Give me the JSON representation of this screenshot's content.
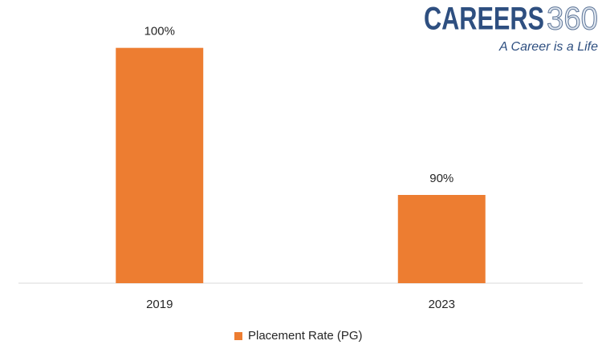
{
  "chart_data": {
    "type": "bar",
    "categories": [
      "2019",
      "2023"
    ],
    "series": [
      {
        "name": "Placement Rate (PG)",
        "color": "#ed7d31",
        "values": [
          100,
          90
        ],
        "value_labels": [
          "100%",
          "90%"
        ]
      }
    ],
    "ylim": [
      84,
      102
    ],
    "grid": false,
    "legend": "bottom"
  },
  "logo": {
    "text": "CAREERS",
    "number": "360",
    "tagline": "A Career is a Life"
  }
}
